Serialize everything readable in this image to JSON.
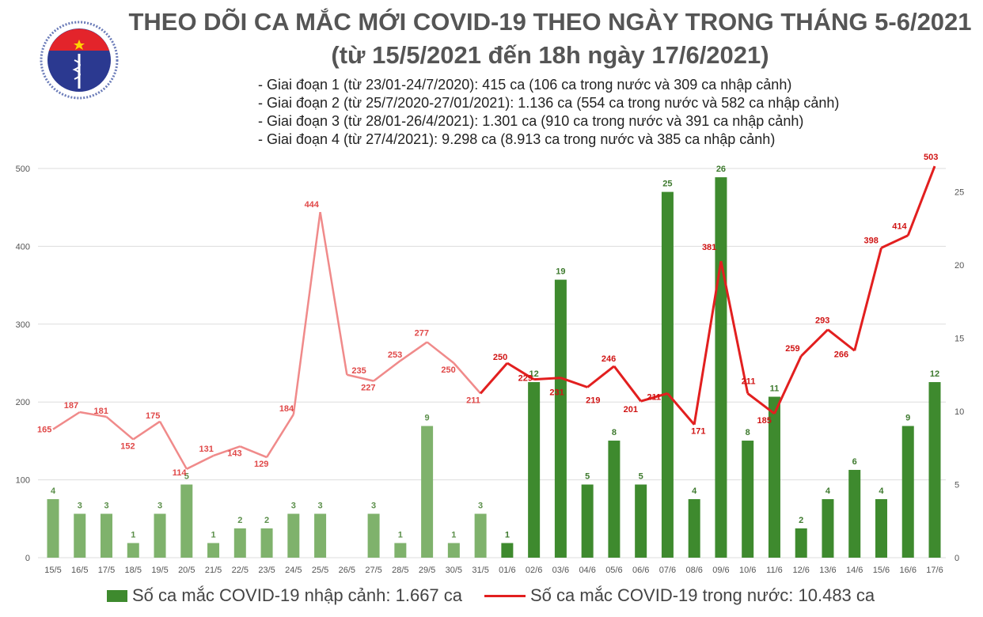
{
  "logo_text": [
    "BỘ Y TẾ",
    "MINISTRY OF HEALTH"
  ],
  "title": "THEO DÕI CA MẮC MỚI COVID-19 THEO NGÀY TRONG THÁNG 5-6/2021",
  "subtitle": "(từ 15/5/2021 đến 18h ngày 17/6/2021)",
  "notes": [
    "- Giai đoạn 1 (từ 23/01-24/7/2020): 415 ca (106 ca trong nước và 309 ca nhập cảnh)",
    "- Giai đoạn 2 (từ 25/7/2020-27/01/2021): 1.136 ca (554 ca trong nước và 582 ca nhập cảnh)",
    "- Giai đoạn 3 (từ 28/01-26/4/2021): 1.301 ca (910 ca trong nước và 391 ca nhập cảnh)",
    "- Giai đoạn 4 (từ 27/4/2021): 9.298 ca (8.913 ca trong nước và 385 ca nhập cảnh)"
  ],
  "chart_data": {
    "type": "bar+line",
    "categories": [
      "15/5",
      "16/5",
      "17/5",
      "18/5",
      "19/5",
      "20/5",
      "21/5",
      "22/5",
      "23/5",
      "24/5",
      "25/5",
      "26/5",
      "27/5",
      "28/5",
      "29/5",
      "30/5",
      "31/5",
      "01/6",
      "02/6",
      "03/6",
      "04/6",
      "05/6",
      "06/6",
      "07/6",
      "08/6",
      "09/6",
      "10/6",
      "11/6",
      "12/6",
      "13/6",
      "14/6",
      "15/6",
      "16/6",
      "17/6"
    ],
    "series": [
      {
        "name": "Số ca mắc COVID-19 nhập cảnh: 1.667 ca",
        "type": "bar",
        "axis": "right",
        "color": "#3e8a2e",
        "values": [
          4,
          3,
          3,
          1,
          3,
          5,
          1,
          2,
          2,
          3,
          3,
          null,
          3,
          1,
          9,
          1,
          3,
          1,
          12,
          19,
          5,
          8,
          5,
          25,
          4,
          26,
          8,
          11,
          2,
          4,
          6,
          4,
          9,
          12
        ]
      },
      {
        "name": "Số ca mắc COVID-19 trong nước: 10.483 ca",
        "type": "line",
        "axis": "left",
        "color": "#e21f1f",
        "values": [
          165,
          187,
          181,
          152,
          175,
          114,
          131,
          143,
          129,
          184,
          444,
          235,
          227,
          253,
          277,
          250,
          211,
          250,
          229,
          231,
          219,
          246,
          201,
          211,
          171,
          381,
          211,
          185,
          259,
          293,
          266,
          398,
          414,
          503
        ]
      }
    ],
    "left_axis": {
      "ylim": [
        0,
        500
      ],
      "ticks": [
        0,
        100,
        200,
        300,
        400,
        500
      ]
    },
    "right_axis": {
      "ylim": [
        0,
        26.6
      ],
      "ticks": [
        0,
        5,
        10,
        15,
        20,
        25
      ]
    },
    "grid": true,
    "legend": "bottom"
  }
}
